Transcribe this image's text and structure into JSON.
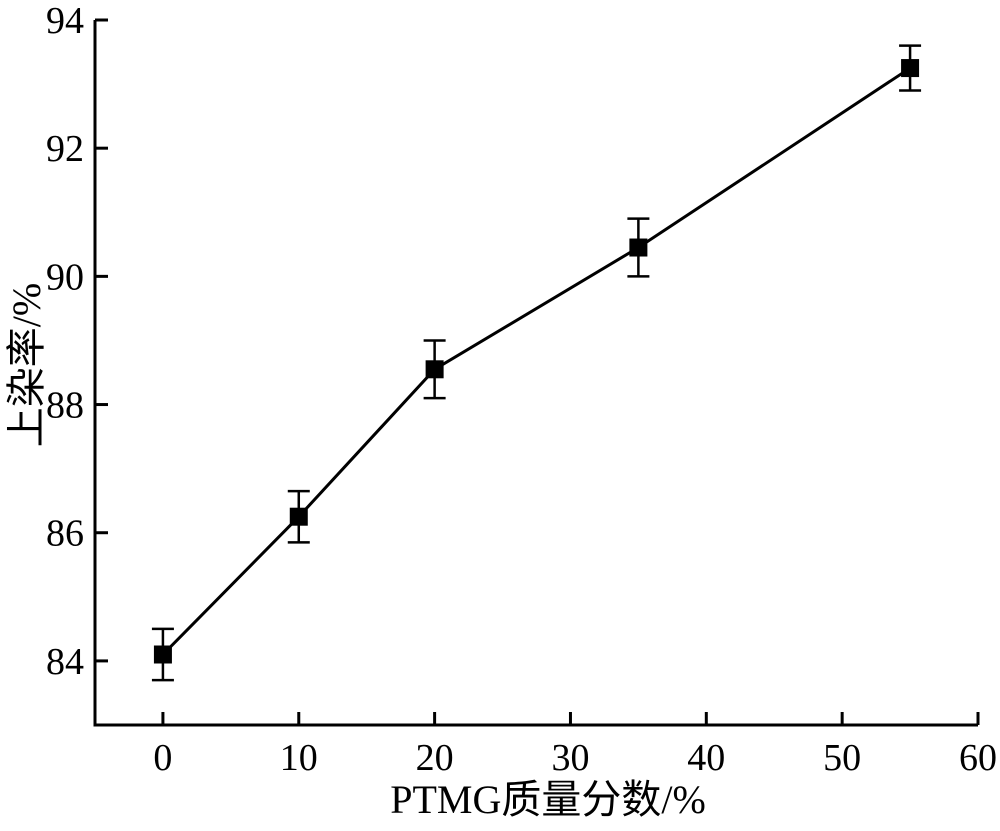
{
  "chart_data": {
    "type": "line",
    "xlabel": "PTMG质量分数/%",
    "ylabel": "上染率/%",
    "x": [
      0,
      10,
      20,
      35,
      55
    ],
    "y": [
      84.1,
      86.25,
      88.55,
      90.45,
      93.25
    ],
    "y_err": [
      0.4,
      0.4,
      0.45,
      0.45,
      0.35
    ],
    "x_ticks": [
      0,
      10,
      20,
      30,
      40,
      50,
      60
    ],
    "y_ticks": [
      84,
      86,
      88,
      90,
      92,
      94
    ],
    "xlim": [
      -5,
      60
    ],
    "ylim": [
      83.0,
      94.0
    ],
    "error_bars": true,
    "marker": "filled-square",
    "grid": false,
    "legend": "none",
    "line_color": "#000000",
    "marker_color": "#000000",
    "background_color": "#ffffff"
  }
}
